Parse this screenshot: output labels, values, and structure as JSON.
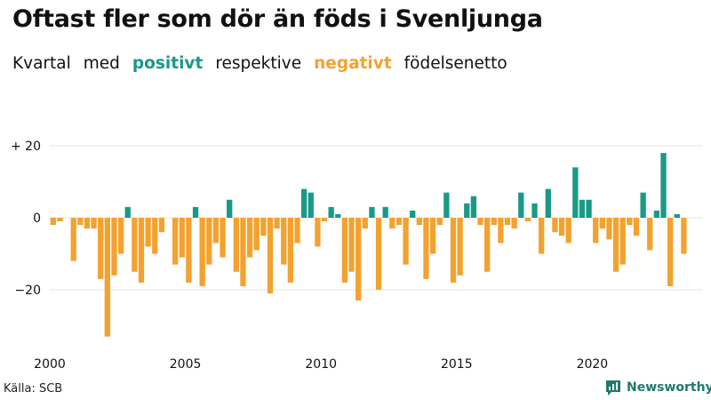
{
  "header": {
    "title": "Oftast fler som dör än föds i Svenljunga",
    "subtitle_parts": [
      "Kvartal",
      "med",
      "positivt",
      "respektive",
      "negativt",
      "födelsenetto"
    ]
  },
  "footer": {
    "source": "Källa: SCB",
    "brand": "Newsworthy"
  },
  "colors": {
    "positive": "#1a9988",
    "negative": "#f3a22f",
    "grid": "#e4e4e4",
    "brand": "#1f7a70"
  },
  "chart_data": {
    "type": "bar",
    "title": "Oftast fler som dör än föds i Svenljunga",
    "subtitle": "Kvartal med positivt respektive negativt födelsenetto",
    "xlabel": "",
    "ylabel": "",
    "ylim": [
      -35,
      22
    ],
    "y_ticks": [
      20,
      0,
      -20
    ],
    "y_tick_labels": [
      "+ 20",
      "0",
      "−20"
    ],
    "x_ticks": [
      "2000",
      "2005",
      "2010",
      "2015",
      "2020"
    ],
    "start_year": 2000,
    "quarters_per_year": 4,
    "values": [
      -2,
      -1,
      0,
      -12,
      -2,
      -3,
      -3,
      -17,
      -33,
      -16,
      -10,
      3,
      -15,
      -18,
      -8,
      -10,
      -4,
      0,
      -13,
      -11,
      -18,
      3,
      -19,
      -13,
      -7,
      -11,
      5,
      -15,
      -19,
      -11,
      -9,
      -5,
      -21,
      -3,
      -13,
      -18,
      -7,
      8,
      7,
      -8,
      -1,
      3,
      1,
      -18,
      -15,
      -23,
      -3,
      3,
      -20,
      3,
      -3,
      -2,
      -13,
      2,
      -2,
      -17,
      -10,
      -2,
      7,
      -18,
      -16,
      4,
      6,
      -2,
      -15,
      -2,
      -7,
      -2,
      -3,
      7,
      -1,
      4,
      -10,
      8,
      -4,
      -5,
      -7,
      14,
      5,
      5,
      -7,
      -3,
      -6,
      -15,
      -13,
      -2,
      -5,
      7,
      -9,
      2,
      18,
      -19,
      1,
      -10
    ]
  }
}
